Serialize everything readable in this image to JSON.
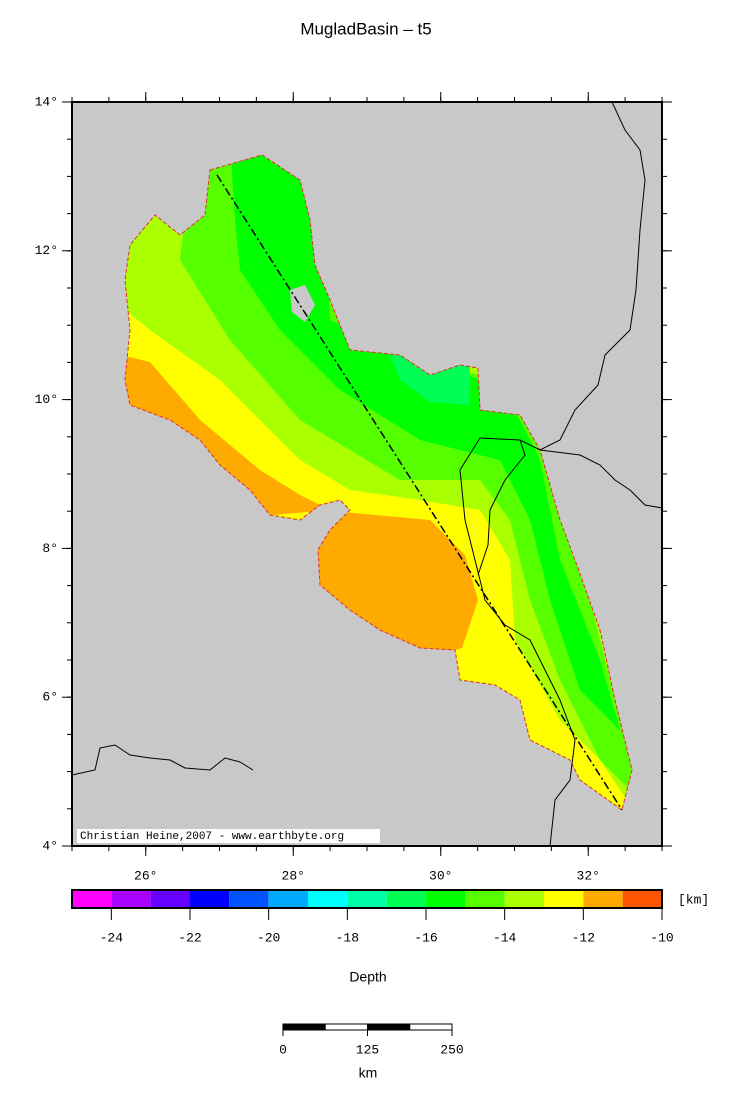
{
  "title": "MugladBasin – t5",
  "map": {
    "lon_range": [
      25,
      33
    ],
    "lat_range": [
      4,
      14
    ],
    "lon_ticks": [
      {
        "value": 26,
        "label": "26°"
      },
      {
        "value": 28,
        "label": "28°"
      },
      {
        "value": 30,
        "label": "30°"
      },
      {
        "value": 32,
        "label": "32°"
      }
    ],
    "lat_ticks": [
      {
        "value": 4,
        "label": "4°"
      },
      {
        "value": 6,
        "label": "6°"
      },
      {
        "value": 8,
        "label": "8°"
      },
      {
        "value": 10,
        "label": "10°"
      },
      {
        "value": 12,
        "label": "12°"
      },
      {
        "value": 14,
        "label": "14°"
      }
    ],
    "credit": "Christian Heine,2007 - www.earthbyte.org"
  },
  "colorbar": {
    "range": [
      -25,
      -10
    ],
    "ticks": [
      -24,
      -22,
      -20,
      -18,
      -16,
      -14,
      -12,
      -10
    ],
    "colors": [
      "#ff00ff",
      "#aa00ff",
      "#6600ff",
      "#0000ff",
      "#0055ff",
      "#00aaff",
      "#00ffff",
      "#00ffaa",
      "#00ff55",
      "#00ff00",
      "#55ff00",
      "#aaff00",
      "#ffff00",
      "#ffaa00",
      "#ff5500"
    ],
    "unit": "[km]",
    "label": "Depth"
  },
  "scale_bar": {
    "ticks": [
      0,
      125,
      250
    ],
    "unit": "km"
  }
}
